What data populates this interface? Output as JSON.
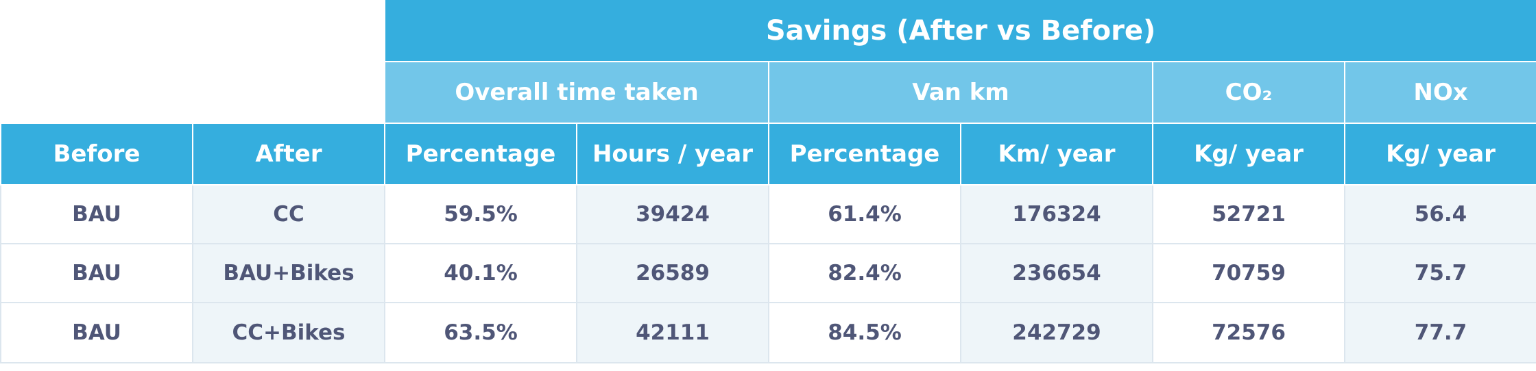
{
  "header": {
    "group_title": "Savings (After vs Before)",
    "subgroups": [
      {
        "label": "Overall time taken"
      },
      {
        "label": "Van km"
      },
      {
        "label": "CO₂"
      },
      {
        "label": "NOx"
      }
    ],
    "columns": [
      "Before",
      "After",
      "Percentage",
      "Hours / year",
      "Percentage",
      "Km/ year",
      "Kg/ year",
      "Kg/ year"
    ]
  },
  "rows": [
    {
      "before": "BAU",
      "after": "CC",
      "time_pct": "59.5%",
      "hours_year": "39424",
      "van_pct": "61.4%",
      "km_year": "176324",
      "co2_kg_year": "52721",
      "nox_kg_year": "56.4"
    },
    {
      "before": "BAU",
      "after": "BAU+Bikes",
      "time_pct": "40.1%",
      "hours_year": "26589",
      "van_pct": "82.4%",
      "km_year": "236654",
      "co2_kg_year": "70759",
      "nox_kg_year": "75.7"
    },
    {
      "before": "BAU",
      "after": "CC+Bikes",
      "time_pct": "63.5%",
      "hours_year": "42111",
      "van_pct": "84.5%",
      "km_year": "242729",
      "co2_kg_year": "72576",
      "nox_kg_year": "77.7"
    }
  ],
  "colors": {
    "header_dark": "#35aede",
    "header_light": "#72c6e9",
    "text_dark": "#4f5677",
    "row_tint": "#eef5f9",
    "grid": "#dce6ee"
  }
}
